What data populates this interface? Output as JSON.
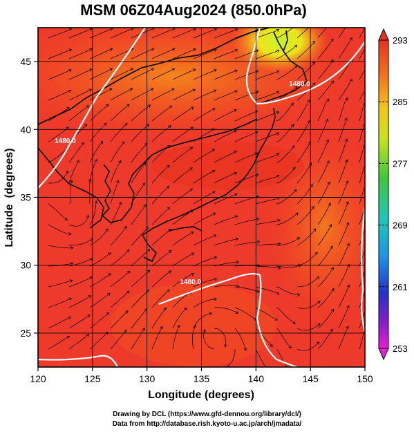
{
  "title": "MSM 06Z04Aug2024 (850.0hPa)",
  "chart_data": {
    "type": "map",
    "x_axis": {
      "label": "Longitude (degrees)",
      "range": [
        120,
        150
      ],
      "ticks": [
        120,
        125,
        130,
        135,
        140,
        145,
        150
      ]
    },
    "y_axis": {
      "label": "Latitude  (degrees)",
      "range": [
        22.5,
        47.5
      ],
      "ticks": [
        25,
        30,
        35,
        40,
        45
      ]
    },
    "colorbar": {
      "min": 253,
      "max": 293,
      "tick_labels": [
        "293",
        "285",
        "277",
        "269",
        "261",
        "253"
      ]
    },
    "contour_labels": [
      {
        "text": "1480.0",
        "lon": 122.5,
        "lat": 39.0
      },
      {
        "text": "1480.0",
        "lon": 144.0,
        "lat": 43.2
      },
      {
        "text": "1480.0",
        "lon": 134.0,
        "lat": 28.6
      }
    ],
    "colors": {
      "warm": "#ee3a2a",
      "hot": "#f0481f",
      "orange": "#f47a1c",
      "yellow": "#e8e81a",
      "green": "#7cd833"
    }
  },
  "credits": [
    "Drawing by DCL (https://www.gfd-dennou.org/library/dcl/)",
    "Data from http://database.rish.kyoto-u.ac.jp/arch/jmadata/"
  ]
}
